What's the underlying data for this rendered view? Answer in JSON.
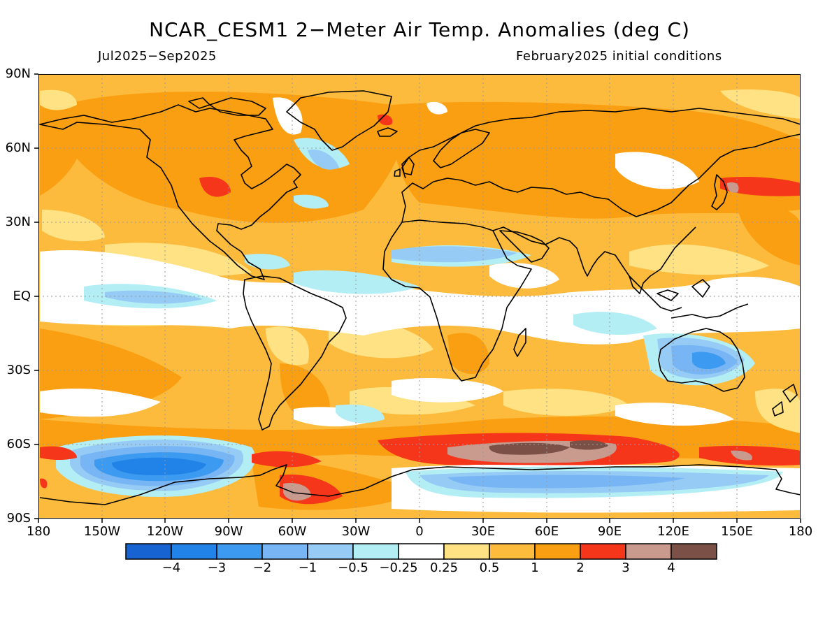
{
  "header": {
    "title": "NCAR_CESM1 2−Meter Air Temp. Anomalies (deg C)",
    "period": "Jul2025−Sep2025",
    "init": "February2025 initial conditions"
  },
  "axes": {
    "lat_labels": [
      "90N",
      "60N",
      "30N",
      "EQ",
      "30S",
      "60S",
      "90S"
    ],
    "lon_labels": [
      "180",
      "150W",
      "120W",
      "90W",
      "60W",
      "30W",
      "0",
      "30E",
      "60E",
      "90E",
      "120E",
      "150E",
      "180"
    ]
  },
  "colorbar": {
    "colors": [
      "#1763d2",
      "#2182e8",
      "#3c9bf0",
      "#78b5f5",
      "#96cbf5",
      "#b4eef5",
      "#ffffff",
      "#fee284",
      "#fcbb3c",
      "#fb9f12",
      "#f6361a",
      "#c99b8f",
      "#7b5047"
    ],
    "labels": [
      "−4",
      "−3",
      "−2",
      "−1",
      "−0.5",
      "−0.25",
      "0.25",
      "0.5",
      "1",
      "2",
      "3",
      "4"
    ]
  },
  "legend_map": {
    "background_anomaly_color": "#fcbb3c",
    "coastline_color": "#000000",
    "grid": "dotted"
  }
}
